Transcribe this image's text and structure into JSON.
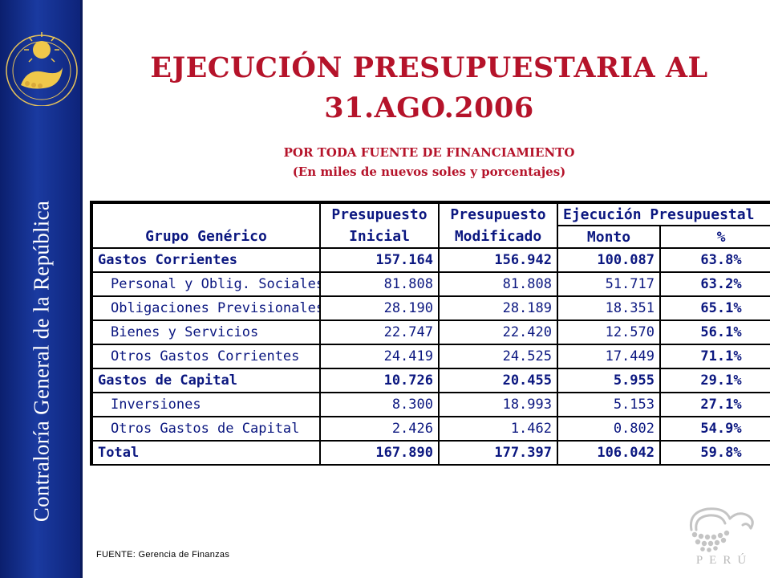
{
  "sidebar": {
    "text": "Contraloría General de la República"
  },
  "header": {
    "title_line1": "EJECUCIÓN PRESUPUESTARIA AL",
    "title_line2": "31.AGO.2006",
    "subtitle_line1": "POR TODA FUENTE DE FINANCIAMIENTO",
    "subtitle_line2": "(En miles de nuevos soles y porcentajes)"
  },
  "table": {
    "headers": {
      "grupo_top": "",
      "grupo": "Grupo Genérico",
      "inicial_top": "Presupuesto",
      "inicial_bottom": "Inicial",
      "modificado_top": "Presupuesto",
      "modificado_bottom": "Modificado",
      "ejecucion": "Ejecución Presupuestal",
      "monto": "Monto",
      "pct": "%"
    },
    "rows": [
      {
        "name": "Gastos Corrientes",
        "inicial": "157.164",
        "modificado": "156.942",
        "monto": "100.087",
        "pct": "63.8%"
      },
      {
        "name": "Personal y Oblig. Sociales",
        "inicial": "81.808",
        "modificado": "81.808",
        "monto": "51.717",
        "pct": "63.2%"
      },
      {
        "name": "Obligaciones Previsionales",
        "inicial": "28.190",
        "modificado": "28.189",
        "monto": "18.351",
        "pct": "65.1%"
      },
      {
        "name": "Bienes y Servicios",
        "inicial": "22.747",
        "modificado": "22.420",
        "monto": "12.570",
        "pct": "56.1%"
      },
      {
        "name": "Otros Gastos Corrientes",
        "inicial": "24.419",
        "modificado": "24.525",
        "monto": "17.449",
        "pct": "71.1%"
      },
      {
        "name": "Gastos de Capital",
        "inicial": "10.726",
        "modificado": "20.455",
        "monto": "5.955",
        "pct": "29.1%"
      },
      {
        "name": "Inversiones",
        "inicial": "8.300",
        "modificado": "18.993",
        "monto": "5.153",
        "pct": "27.1%"
      },
      {
        "name": "Otros Gastos de Capital",
        "inicial": "2.426",
        "modificado": "1.462",
        "monto": "0.802",
        "pct": "54.9%"
      },
      {
        "name": "Total",
        "inicial": "167.890",
        "modificado": "177.397",
        "monto": "106.042",
        "pct": "59.8%"
      }
    ]
  },
  "footer": {
    "source": "FUENTE: Gerencia de Finanzas"
  },
  "logo": {
    "word": "PERÚ"
  },
  "colors": {
    "sidebar": "#1a3aa0",
    "title": "#b5132a",
    "table_text": "#0b1780"
  }
}
